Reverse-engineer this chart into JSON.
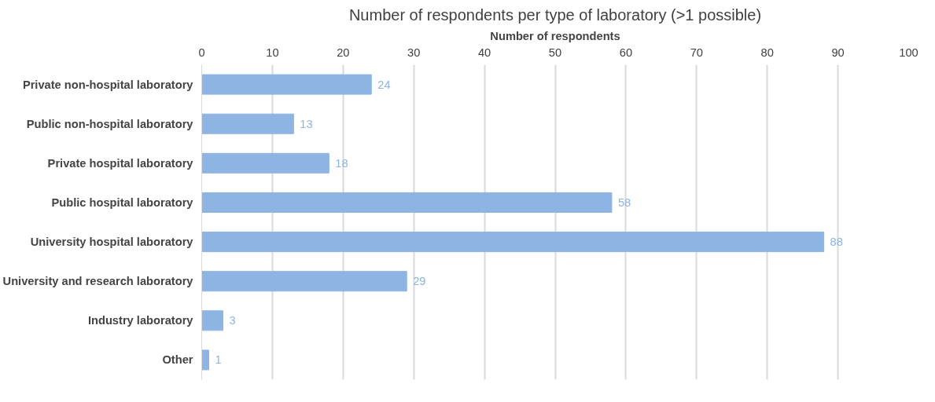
{
  "chart_data": {
    "type": "bar",
    "orientation": "horizontal",
    "title": "Number of respondents per type of laboratory (>1 possible)",
    "xlabel": "Number of respondents",
    "categories": [
      "Private non-hospital laboratory",
      "Public non-hospital laboratory",
      "Private hospital laboratory",
      "Public hospital laboratory",
      "University hospital laboratory",
      "University and research laboratory",
      "Industry laboratory",
      "Other"
    ],
    "values": [
      24,
      13,
      18,
      58,
      88,
      29,
      3,
      1
    ],
    "color": "#8eb4e3",
    "xlim": [
      0,
      100
    ],
    "xticks": [
      0,
      10,
      20,
      30,
      40,
      50,
      60,
      70,
      80,
      90,
      100
    ],
    "grid": "x",
    "data_labels": true
  }
}
